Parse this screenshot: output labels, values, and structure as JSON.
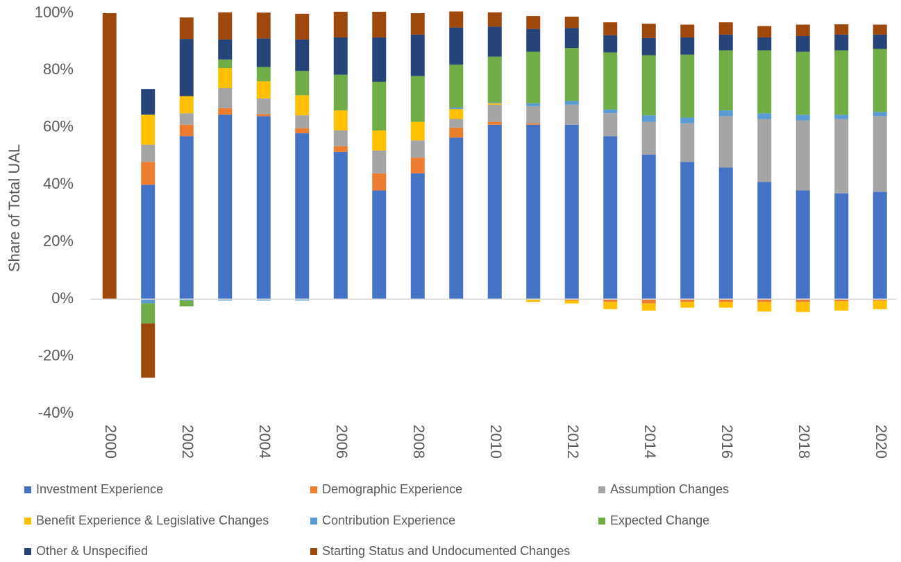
{
  "chart_data": {
    "type": "stacked_bar",
    "ylabel": "Share of Total UAL",
    "categories": [
      "2000",
      null,
      "2002",
      null,
      "2004",
      null,
      "2006",
      null,
      "2008",
      null,
      "2010",
      null,
      "2012",
      null,
      "2014",
      null,
      "2016",
      null,
      "2018",
      null,
      "2020"
    ],
    "ylim": [
      -40,
      100
    ],
    "yticks": [
      {
        "value": -40,
        "label": "-40%"
      },
      {
        "value": -20,
        "label": "-20%"
      },
      {
        "value": 0,
        "label": "0%"
      },
      {
        "value": 20,
        "label": "20%"
      },
      {
        "value": 40,
        "label": "40%"
      },
      {
        "value": 60,
        "label": "60%"
      },
      {
        "value": 80,
        "label": "80%"
      },
      {
        "value": 100,
        "label": "100%"
      }
    ],
    "grid": false,
    "legend": "bottom",
    "series": [
      {
        "name": "Investment Experience",
        "color": "#4472c4",
        "values": [
          0,
          40,
          57,
          64.5,
          64,
          58,
          51.5,
          38,
          44,
          56.5,
          61,
          61,
          61,
          57,
          50.5,
          48,
          46,
          41,
          38,
          37,
          37.5
        ]
      },
      {
        "name": "Demographic Experience",
        "color": "#ed7d31",
        "values": [
          0,
          8,
          4,
          2.3,
          0.7,
          1.8,
          2,
          6,
          5.5,
          3.5,
          1,
          0.5,
          -0.5,
          -1,
          -1.5,
          -1,
          -1,
          -1,
          -1,
          -0.7,
          -0.5
        ]
      },
      {
        "name": "Assumption Changes",
        "color": "#a5a5a5",
        "values": [
          0,
          6,
          4,
          7,
          5.5,
          4.5,
          5.5,
          8,
          6,
          3,
          6,
          6,
          7,
          8,
          11.5,
          13.5,
          18,
          22,
          24.5,
          26,
          26.5
        ]
      },
      {
        "name": "Benefit Experience & Legislative Changes",
        "color": "#ffc000",
        "values": [
          0,
          10.5,
          6,
          7,
          6,
          7,
          7,
          7,
          6.5,
          3.5,
          0.5,
          -1,
          -1,
          -2.5,
          -2.5,
          -2,
          -2,
          -3.3,
          -3.5,
          -3.3,
          -3
        ]
      },
      {
        "name": "Contribution Experience",
        "color": "#5b9bd5",
        "values": [
          0,
          -1.5,
          -0.5,
          -0.5,
          -0.5,
          -0.5,
          0,
          0,
          0,
          0.5,
          0.3,
          1,
          1.3,
          1.3,
          2.3,
          2,
          2,
          2,
          2,
          1.5,
          1.5
        ]
      },
      {
        "name": "Expected Change",
        "color": "#70ad47",
        "values": [
          0,
          -7,
          -2,
          3,
          5,
          8.5,
          12.5,
          17,
          16,
          15,
          16,
          18,
          18.5,
          20,
          21,
          22,
          21,
          22,
          22,
          22.5,
          22
        ]
      },
      {
        "name": "Other & Unspecified",
        "color": "#264478",
        "values": [
          0,
          9,
          20,
          7,
          10,
          11,
          13,
          15.5,
          14.5,
          13,
          10.5,
          8,
          7,
          6,
          6,
          6,
          5.5,
          4.5,
          5.5,
          5.5,
          5
        ]
      },
      {
        "name": "Starting Status and Undocumented Changes",
        "color": "#9e480e",
        "values": [
          100,
          -19,
          7.5,
          9.5,
          9,
          9,
          9,
          9,
          7.5,
          5.6,
          5,
          4.5,
          4,
          4.5,
          5,
          4.5,
          4.3,
          4,
          4,
          3.6,
          3.5
        ]
      }
    ]
  }
}
